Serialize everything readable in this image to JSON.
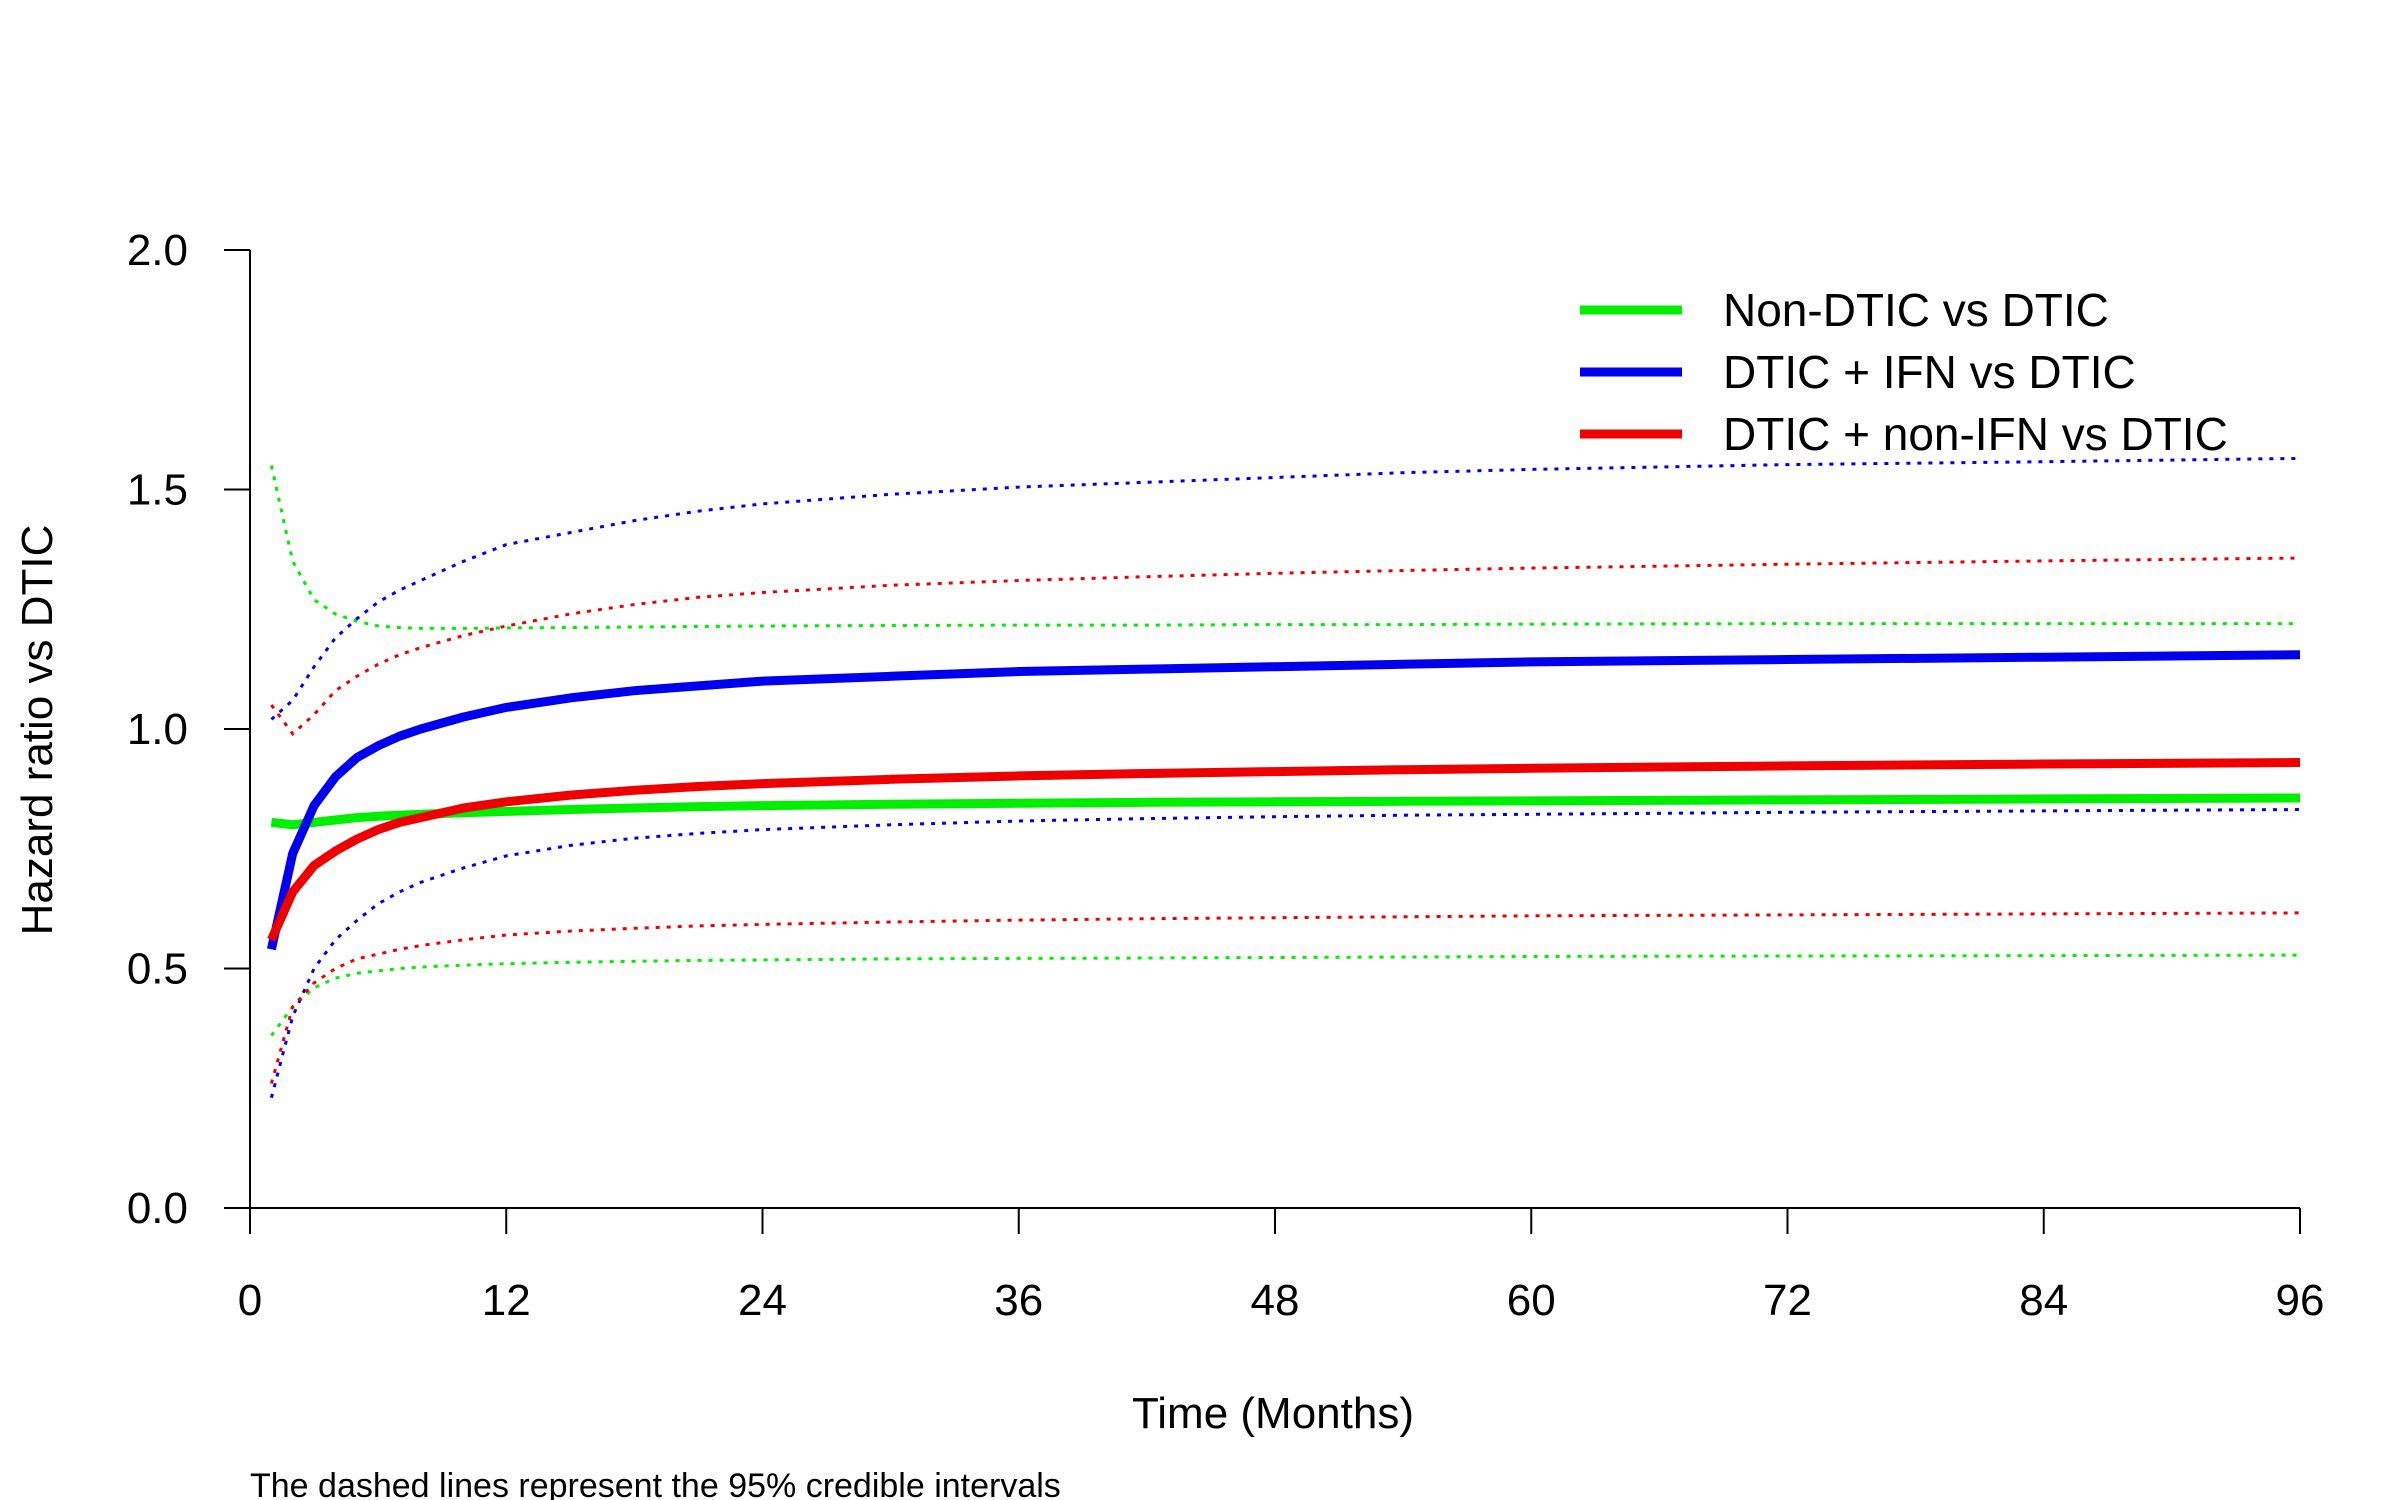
{
  "chart_data": {
    "type": "line",
    "title": "",
    "xlabel": "Time (Months)",
    "ylabel": "Hazard ratio vs DTIC",
    "footnote": "The dashed lines represent the 95% credible intervals",
    "xlim": [
      0,
      96
    ],
    "ylim": [
      0,
      2
    ],
    "x_ticks": [
      0,
      12,
      24,
      36,
      48,
      60,
      72,
      84,
      96
    ],
    "x_tick_labels": [
      "0",
      "12",
      "24",
      "36",
      "48",
      "60",
      "72",
      "84",
      "96"
    ],
    "y_ticks": [
      0,
      0.5,
      1,
      1.5,
      2
    ],
    "y_tick_labels": [
      "0.0",
      "0.5",
      "1.0",
      "1.5",
      "2.0"
    ],
    "grid": false,
    "legend_position": "top-right",
    "x": [
      1,
      2,
      3,
      4,
      5,
      6,
      7,
      8,
      10,
      12,
      15,
      18,
      21,
      24,
      30,
      36,
      42,
      48,
      54,
      60,
      72,
      84,
      96
    ],
    "series": [
      {
        "name": "Non-DTIC vs DTIC",
        "color": "#00ee00",
        "style": "solid",
        "values": [
          0.805,
          0.8,
          0.805,
          0.81,
          0.815,
          0.818,
          0.82,
          0.822,
          0.825,
          0.828,
          0.832,
          0.835,
          0.838,
          0.84,
          0.843,
          0.845,
          0.847,
          0.848,
          0.849,
          0.85,
          0.852,
          0.854,
          0.856
        ],
        "lower": [
          0.36,
          0.42,
          0.46,
          0.48,
          0.49,
          0.495,
          0.5,
          0.503,
          0.507,
          0.51,
          0.513,
          0.515,
          0.517,
          0.518,
          0.52,
          0.521,
          0.522,
          0.523,
          0.524,
          0.525,
          0.526,
          0.527,
          0.528
        ],
        "upper": [
          1.55,
          1.35,
          1.27,
          1.24,
          1.225,
          1.215,
          1.212,
          1.21,
          1.21,
          1.211,
          1.212,
          1.213,
          1.214,
          1.215,
          1.216,
          1.217,
          1.217,
          1.218,
          1.218,
          1.219,
          1.22,
          1.22,
          1.22
        ]
      },
      {
        "name": "DTIC + IFN vs DTIC",
        "color": "#0000ee",
        "style": "solid",
        "values": [
          0.54,
          0.74,
          0.84,
          0.9,
          0.94,
          0.965,
          0.985,
          1.0,
          1.025,
          1.045,
          1.065,
          1.08,
          1.09,
          1.1,
          1.11,
          1.12,
          1.125,
          1.13,
          1.135,
          1.14,
          1.145,
          1.15,
          1.155
        ],
        "lower": [
          0.23,
          0.4,
          0.5,
          0.56,
          0.6,
          0.635,
          0.66,
          0.68,
          0.71,
          0.735,
          0.757,
          0.772,
          0.782,
          0.79,
          0.8,
          0.808,
          0.813,
          0.817,
          0.82,
          0.822,
          0.826,
          0.829,
          0.832
        ],
        "upper": [
          1.02,
          1.06,
          1.13,
          1.19,
          1.23,
          1.265,
          1.29,
          1.31,
          1.35,
          1.385,
          1.41,
          1.435,
          1.455,
          1.47,
          1.49,
          1.505,
          1.515,
          1.525,
          1.535,
          1.542,
          1.552,
          1.558,
          1.565
        ]
      },
      {
        "name": "DTIC + non-IFN vs DTIC",
        "color": "#ee0000",
        "style": "solid",
        "values": [
          0.56,
          0.66,
          0.715,
          0.745,
          0.77,
          0.79,
          0.805,
          0.815,
          0.835,
          0.848,
          0.862,
          0.872,
          0.88,
          0.886,
          0.895,
          0.902,
          0.907,
          0.911,
          0.915,
          0.918,
          0.923,
          0.927,
          0.93
        ],
        "lower": [
          0.26,
          0.42,
          0.47,
          0.5,
          0.52,
          0.53,
          0.54,
          0.548,
          0.56,
          0.57,
          0.578,
          0.584,
          0.589,
          0.592,
          0.597,
          0.601,
          0.604,
          0.606,
          0.608,
          0.61,
          0.612,
          0.614,
          0.616
        ],
        "upper": [
          1.05,
          0.99,
          1.03,
          1.08,
          1.11,
          1.135,
          1.155,
          1.17,
          1.195,
          1.215,
          1.24,
          1.26,
          1.275,
          1.285,
          1.3,
          1.31,
          1.318,
          1.325,
          1.331,
          1.336,
          1.344,
          1.351,
          1.357
        ]
      }
    ]
  }
}
